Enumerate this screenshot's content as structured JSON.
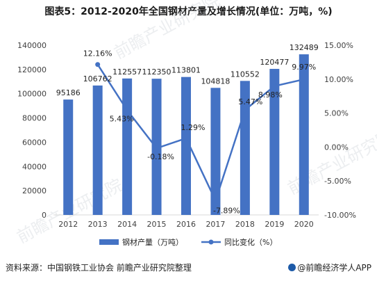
{
  "title": "图表5：2012-2020年全国钢材产量及增长情况(单位：万吨，%)",
  "source": "资料来源：中国钢铁工业协会 前瞻产业研究院整理",
  "brand": "@前瞻经济学人APP",
  "watermark": "前瞻产业研究院",
  "colors": {
    "bar": "#4472C4",
    "line": "#4472C4",
    "axis": "#d9d9d9",
    "text": "#404040"
  },
  "chart_data": {
    "type": "bar",
    "categories": [
      "2012",
      "2013",
      "2014",
      "2015",
      "2016",
      "2017",
      "2018",
      "2019",
      "2020"
    ],
    "series": [
      {
        "name": "钢材产量（万吨）",
        "type": "bar",
        "axis": "left",
        "values": [
          95186,
          106762,
          112557,
          112350,
          113801,
          104818,
          110552,
          120477,
          132489
        ]
      },
      {
        "name": "同比变化（%）",
        "type": "line",
        "axis": "right",
        "values": [
          null,
          12.16,
          5.43,
          -0.18,
          1.29,
          -7.89,
          5.47,
          8.98,
          9.97
        ]
      }
    ],
    "bar_labels": [
      "95186",
      "106762",
      "112557",
      "112350",
      "113801",
      "104818",
      "110552",
      "120477",
      "132489"
    ],
    "line_labels": [
      "",
      "12.16%",
      "5.43%",
      "-0.18%",
      "1.29%",
      "-7.89%",
      "5.47%",
      "8.98%",
      "9.97%"
    ],
    "y_left": {
      "min": 0,
      "max": 140000,
      "ticks": [
        "0",
        "20000",
        "40000",
        "60000",
        "80000",
        "100000",
        "120000",
        "140000"
      ]
    },
    "y_right": {
      "min": -10,
      "max": 15,
      "ticks": [
        "-10.00%",
        "-5.00%",
        "0.00%",
        "5.00%",
        "10.00%",
        "15.00%"
      ]
    },
    "legend": [
      "钢材产量（万吨）",
      "同比变化（%）"
    ],
    "legend_position": "bottom",
    "grid": false
  }
}
